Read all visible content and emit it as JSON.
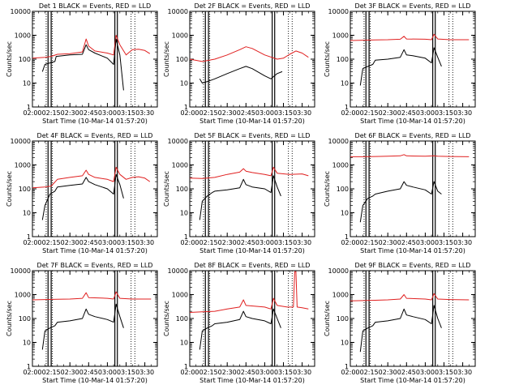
{
  "chart_data": [
    {
      "type": "line",
      "title": "Det 1 BLACK = Events, RED = LLD",
      "xlabel": "Start Time (10-Mar-14 01:57:20)",
      "ylabel": "Counts/sec",
      "yscale": "log",
      "ylim": [
        1,
        10000
      ],
      "xlim": [
        "02:00",
        "03:40"
      ],
      "x_ticks": [
        "02:00",
        "02:15",
        "02:30",
        "02:45",
        "03:00",
        "03:15",
        "03:30"
      ],
      "y_ticks": [
        "1",
        "10",
        "100",
        "1000",
        "10000"
      ],
      "markers": {
        "dotted": [
          "02:11",
          "02:16",
          "03:19",
          "03:22"
        ],
        "solid": [
          "02:12.5",
          "02:15",
          "03:06",
          "03:08"
        ]
      },
      "series": [
        {
          "color": "#e02020",
          "x": [
            "02:00",
            "02:10",
            "02:15",
            "02:20",
            "02:30",
            "02:40",
            "02:43",
            "02:45",
            "02:50",
            "03:00",
            "03:05",
            "03:07",
            "03:10",
            "03:15",
            "03:20",
            "03:25",
            "03:30",
            "03:34"
          ],
          "values": [
            110,
            120,
            130,
            160,
            170,
            200,
            700,
            350,
            220,
            180,
            150,
            1000,
            400,
            150,
            250,
            260,
            230,
            170
          ]
        },
        {
          "color": "#000000",
          "x": [
            "02:08",
            "02:10",
            "02:14",
            "02:18",
            "02:19",
            "02:30",
            "02:40",
            "02:43",
            "02:45",
            "02:50",
            "03:00",
            "03:05",
            "03:07",
            "03:10",
            "03:13"
          ],
          "values": [
            30,
            60,
            70,
            80,
            130,
            150,
            160,
            400,
            250,
            180,
            110,
            60,
            700,
            150,
            5
          ]
        }
      ]
    },
    {
      "type": "line",
      "title": "Det 2F BLACK = Events, RED = LLD",
      "xlabel": "Start Time (10-Mar-14 01:57:20)",
      "ylabel": "Counts/sec",
      "yscale": "log",
      "ylim": [
        1,
        10000
      ],
      "xlim": [
        "02:00",
        "03:40"
      ],
      "x_ticks": [
        "02:00",
        "02:15",
        "02:30",
        "02:45",
        "03:00",
        "03:15",
        "03:30"
      ],
      "y_ticks": [
        "1",
        "10",
        "100",
        "1000",
        "10000"
      ],
      "markers": {
        "dotted": [
          "02:11",
          "02:16",
          "03:19",
          "03:22"
        ],
        "solid": [
          "02:12.5",
          "02:15",
          "03:06",
          "03:08"
        ]
      },
      "series": [
        {
          "color": "#e02020",
          "x": [
            "02:00",
            "02:10",
            "02:20",
            "02:30",
            "02:40",
            "02:45",
            "02:50",
            "03:00",
            "03:10",
            "03:15",
            "03:20",
            "03:25",
            "03:30",
            "03:35"
          ],
          "values": [
            100,
            80,
            100,
            150,
            250,
            330,
            280,
            150,
            100,
            110,
            160,
            220,
            180,
            120
          ]
        },
        {
          "color": "#000000",
          "x": [
            "02:08",
            "02:10",
            "02:15",
            "02:20",
            "02:30",
            "02:40",
            "02:45",
            "02:50",
            "03:00",
            "03:05",
            "03:10",
            "03:14"
          ],
          "values": [
            15,
            10,
            12,
            15,
            25,
            40,
            50,
            40,
            20,
            15,
            25,
            30
          ]
        }
      ]
    },
    {
      "type": "line",
      "title": "Det 3F BLACK = Events, RED = LLD",
      "xlabel": "Start Time (10-Mar-14 01:57:20)",
      "ylabel": "Counts/sec",
      "yscale": "log",
      "ylim": [
        1,
        10000
      ],
      "xlim": [
        "02:00",
        "03:40"
      ],
      "x_ticks": [
        "02:00",
        "02:15",
        "02:30",
        "02:45",
        "03:00",
        "03:15",
        "03:30"
      ],
      "y_ticks": [
        "1",
        "10",
        "100",
        "1000",
        "10000"
      ],
      "markers": {
        "dotted": [
          "02:11",
          "02:16",
          "03:19",
          "03:22"
        ],
        "solid": [
          "02:12.5",
          "02:15",
          "03:06",
          "03:08"
        ]
      },
      "series": [
        {
          "color": "#e02020",
          "x": [
            "02:00",
            "02:10",
            "02:20",
            "02:30",
            "02:40",
            "02:43",
            "02:45",
            "03:00",
            "03:05",
            "03:07",
            "03:10",
            "03:20",
            "03:35"
          ],
          "values": [
            600,
            620,
            640,
            650,
            680,
            900,
            700,
            680,
            650,
            1100,
            700,
            650,
            650
          ]
        },
        {
          "color": "#000000",
          "x": [
            "02:08",
            "02:10",
            "02:14",
            "02:18",
            "02:20",
            "02:30",
            "02:40",
            "02:43",
            "02:45",
            "02:50",
            "03:00",
            "03:05",
            "03:07",
            "03:10",
            "03:13"
          ],
          "values": [
            8,
            40,
            50,
            60,
            90,
            100,
            120,
            250,
            150,
            140,
            110,
            70,
            300,
            120,
            50
          ]
        }
      ]
    },
    {
      "type": "line",
      "title": "Det 4F BLACK = Events, RED = LLD",
      "xlabel": "Start Time (10-Mar-14 01:57:20)",
      "ylabel": "Counts/sec",
      "yscale": "log",
      "ylim": [
        1,
        10000
      ],
      "xlim": [
        "02:00",
        "03:40"
      ],
      "x_ticks": [
        "02:00",
        "02:15",
        "02:30",
        "02:45",
        "03:00",
        "03:15",
        "03:30"
      ],
      "y_ticks": [
        "1",
        "10",
        "100",
        "1000",
        "10000"
      ],
      "markers": {
        "dotted": [
          "02:11",
          "02:16",
          "03:19",
          "03:22"
        ],
        "solid": [
          "02:12.5",
          "02:15",
          "03:06",
          "03:08"
        ]
      },
      "series": [
        {
          "color": "#e02020",
          "x": [
            "02:00",
            "02:10",
            "02:15",
            "02:20",
            "02:30",
            "02:40",
            "02:43",
            "02:45",
            "02:50",
            "03:00",
            "03:05",
            "03:07",
            "03:10",
            "03:15",
            "03:20",
            "03:25",
            "03:30",
            "03:34"
          ],
          "values": [
            110,
            120,
            130,
            250,
            300,
            350,
            600,
            400,
            300,
            250,
            200,
            800,
            400,
            250,
            300,
            320,
            280,
            200
          ]
        },
        {
          "color": "#000000",
          "x": [
            "02:08",
            "02:10",
            "02:14",
            "02:18",
            "02:20",
            "02:30",
            "02:40",
            "02:43",
            "02:45",
            "02:50",
            "03:00",
            "03:05",
            "03:07",
            "03:10",
            "03:13"
          ],
          "values": [
            5,
            20,
            60,
            80,
            120,
            140,
            160,
            300,
            200,
            150,
            100,
            60,
            400,
            150,
            40
          ]
        }
      ]
    },
    {
      "type": "line",
      "title": "Det 5F BLACK = Events, RED = LLD",
      "xlabel": "Start Time (10-Mar-14 01:57:20)",
      "ylabel": "Counts/sec",
      "yscale": "log",
      "ylim": [
        1,
        10000
      ],
      "xlim": [
        "02:00",
        "03:40"
      ],
      "x_ticks": [
        "02:00",
        "02:15",
        "02:30",
        "02:45",
        "03:00",
        "03:15",
        "03:30"
      ],
      "y_ticks": [
        "1",
        "10",
        "100",
        "1000",
        "10000"
      ],
      "markers": {
        "dotted": [
          "02:11",
          "02:16",
          "03:19",
          "03:22"
        ],
        "solid": [
          "02:12.5",
          "02:15",
          "03:06",
          "03:08"
        ]
      },
      "series": [
        {
          "color": "#e02020",
          "x": [
            "02:00",
            "02:10",
            "02:20",
            "02:30",
            "02:40",
            "02:43",
            "02:45",
            "02:50",
            "03:00",
            "03:05",
            "03:07",
            "03:10",
            "03:20",
            "03:30",
            "03:35"
          ],
          "values": [
            280,
            270,
            300,
            400,
            500,
            700,
            550,
            480,
            400,
            350,
            800,
            450,
            400,
            420,
            350
          ]
        },
        {
          "color": "#000000",
          "x": [
            "02:08",
            "02:10",
            "02:14",
            "02:18",
            "02:20",
            "02:30",
            "02:40",
            "02:43",
            "02:45",
            "02:50",
            "03:00",
            "03:05",
            "03:07",
            "03:10",
            "03:13"
          ],
          "values": [
            5,
            30,
            50,
            70,
            80,
            90,
            110,
            250,
            150,
            120,
            100,
            70,
            350,
            120,
            50
          ]
        }
      ]
    },
    {
      "type": "line",
      "title": "Det 6F BLACK = Events, RED = LLD",
      "xlabel": "Start Time (10-Mar-14 01:57:20)",
      "ylabel": "Counts/sec",
      "yscale": "log",
      "ylim": [
        1,
        10000
      ],
      "xlim": [
        "02:00",
        "03:40"
      ],
      "x_ticks": [
        "02:00",
        "02:15",
        "02:30",
        "02:45",
        "03:00",
        "03:15",
        "03:30"
      ],
      "y_ticks": [
        "1",
        "10",
        "100",
        "1000",
        "10000"
      ],
      "markers": {
        "dotted": [
          "02:11",
          "02:16",
          "03:19",
          "03:22"
        ],
        "solid": [
          "02:12.5",
          "02:15",
          "03:06",
          "03:08"
        ]
      },
      "series": [
        {
          "color": "#e02020",
          "x": [
            "02:00",
            "02:10",
            "02:20",
            "02:30",
            "02:40",
            "02:43",
            "02:45",
            "03:00",
            "03:07",
            "03:10",
            "03:20",
            "03:35"
          ],
          "values": [
            2200,
            2200,
            2250,
            2300,
            2400,
            2700,
            2400,
            2300,
            2400,
            2300,
            2250,
            2200
          ]
        },
        {
          "color": "#000000",
          "x": [
            "02:08",
            "02:10",
            "02:14",
            "02:18",
            "02:20",
            "02:30",
            "02:40",
            "02:43",
            "02:45",
            "02:50",
            "03:00",
            "03:05",
            "03:07",
            "03:10",
            "03:13"
          ],
          "values": [
            4,
            20,
            40,
            50,
            60,
            80,
            100,
            200,
            140,
            120,
            90,
            60,
            200,
            80,
            60
          ]
        }
      ]
    },
    {
      "type": "line",
      "title": "Det 7F BLACK = Events, RED = LLD",
      "xlabel": "Start Time (10-Mar-14 01:57:20)",
      "ylabel": "Counts/sec",
      "yscale": "log",
      "ylim": [
        1,
        10000
      ],
      "xlim": [
        "02:00",
        "03:40"
      ],
      "x_ticks": [
        "02:00",
        "02:15",
        "02:30",
        "02:45",
        "03:00",
        "03:15",
        "03:30"
      ],
      "y_ticks": [
        "1",
        "10",
        "100",
        "1000",
        "10000"
      ],
      "markers": {
        "dotted": [
          "02:11",
          "02:16",
          "03:19",
          "03:22"
        ],
        "solid": [
          "02:12.5",
          "02:15",
          "03:06",
          "03:08"
        ]
      },
      "series": [
        {
          "color": "#e02020",
          "x": [
            "02:00",
            "02:10",
            "02:20",
            "02:30",
            "02:40",
            "02:43",
            "02:45",
            "03:00",
            "03:05",
            "03:07",
            "03:10",
            "03:20",
            "03:35"
          ],
          "values": [
            600,
            620,
            640,
            650,
            700,
            1200,
            750,
            700,
            650,
            1300,
            700,
            650,
            650
          ]
        },
        {
          "color": "#000000",
          "x": [
            "02:08",
            "02:10",
            "02:14",
            "02:18",
            "02:20",
            "02:30",
            "02:40",
            "02:43",
            "02:45",
            "02:50",
            "03:00",
            "03:05",
            "03:07",
            "03:10",
            "03:13"
          ],
          "values": [
            5,
            30,
            40,
            50,
            70,
            80,
            100,
            250,
            150,
            120,
            90,
            70,
            400,
            120,
            40
          ]
        }
      ]
    },
    {
      "type": "line",
      "title": "Det 8F BLACK = Events, RED = LLD",
      "xlabel": "Start Time (10-Mar-14 01:57:20)",
      "ylabel": "Counts/sec",
      "yscale": "log",
      "ylim": [
        1,
        10000
      ],
      "xlim": [
        "02:00",
        "03:40"
      ],
      "x_ticks": [
        "02:00",
        "02:15",
        "02:30",
        "02:45",
        "03:00",
        "03:15",
        "03:30"
      ],
      "y_ticks": [
        "1",
        "10",
        "100",
        "1000",
        "10000"
      ],
      "markers": {
        "dotted": [
          "02:11",
          "02:16",
          "03:19",
          "03:22"
        ],
        "solid": [
          "02:12.5",
          "02:15",
          "03:06",
          "03:08"
        ]
      },
      "series": [
        {
          "color": "#e02020",
          "x": [
            "02:00",
            "02:10",
            "02:20",
            "02:30",
            "02:40",
            "02:43",
            "02:45",
            "03:00",
            "03:05",
            "03:07",
            "03:10",
            "03:18",
            "03:23",
            "03:24",
            "03:25",
            "03:26",
            "03:30",
            "03:35"
          ],
          "values": [
            180,
            190,
            200,
            250,
            300,
            600,
            350,
            300,
            250,
            700,
            350,
            300,
            300,
            9000,
            9000,
            300,
            280,
            250
          ]
        },
        {
          "color": "#000000",
          "x": [
            "02:08",
            "02:10",
            "02:14",
            "02:18",
            "02:20",
            "02:30",
            "02:40",
            "02:43",
            "02:45",
            "02:50",
            "03:00",
            "03:05",
            "03:07",
            "03:10",
            "03:13"
          ],
          "values": [
            5,
            30,
            40,
            50,
            60,
            70,
            90,
            200,
            120,
            100,
            80,
            60,
            250,
            100,
            40
          ]
        }
      ]
    },
    {
      "type": "line",
      "title": "Det 9F BLACK = Events, RED = LLD",
      "xlabel": "Start Time (10-Mar-14 01:57:20)",
      "ylabel": "Counts/sec",
      "yscale": "log",
      "ylim": [
        1,
        10000
      ],
      "xlim": [
        "02:00",
        "03:40"
      ],
      "x_ticks": [
        "02:00",
        "02:15",
        "02:30",
        "02:45",
        "03:00",
        "03:15",
        "03:30"
      ],
      "y_ticks": [
        "1",
        "10",
        "100",
        "1000",
        "10000"
      ],
      "markers": {
        "dotted": [
          "02:11",
          "02:16",
          "03:19",
          "03:22"
        ],
        "solid": [
          "02:12.5",
          "02:15",
          "03:06",
          "03:08"
        ]
      },
      "series": [
        {
          "color": "#e02020",
          "x": [
            "02:00",
            "02:10",
            "02:20",
            "02:30",
            "02:40",
            "02:43",
            "02:45",
            "03:00",
            "03:05",
            "03:07",
            "03:10",
            "03:20",
            "03:35"
          ],
          "values": [
            550,
            560,
            580,
            600,
            650,
            1000,
            700,
            650,
            600,
            1100,
            650,
            620,
            600
          ]
        },
        {
          "color": "#000000",
          "x": [
            "02:08",
            "02:10",
            "02:14",
            "02:18",
            "02:20",
            "02:30",
            "02:40",
            "02:43",
            "02:45",
            "02:50",
            "03:00",
            "03:05",
            "03:07",
            "03:10",
            "03:13"
          ],
          "values": [
            4,
            30,
            40,
            50,
            70,
            80,
            100,
            250,
            140,
            120,
            90,
            60,
            350,
            100,
            40
          ]
        }
      ]
    }
  ]
}
